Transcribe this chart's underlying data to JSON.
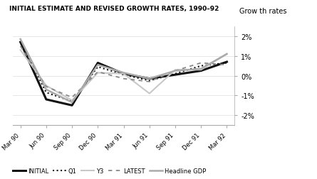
{
  "title": "INITIAL ESTIMATE AND REVISED GROWTH RATES, 1990–92",
  "ylabel": "Grow th rates",
  "xlabels": [
    "Mar 90",
    "Jun 90",
    "Sep 90",
    "Dec 90",
    "Mar 91",
    "Jun 91",
    "Sep 91",
    "Dec 91",
    "Mar 92"
  ],
  "ylim": [
    -2.5,
    2.5
  ],
  "yticks": [
    -2,
    -1,
    0,
    1,
    2
  ],
  "ytick_labels": [
    "-2%",
    "-1%",
    "0%",
    "1%",
    "2%"
  ],
  "series_order": [
    "INITIAL",
    "Q1",
    "Y3",
    "LATEST",
    "Headline GDP"
  ],
  "series": {
    "INITIAL": {
      "values": [
        1.7,
        -1.2,
        -1.5,
        0.65,
        0.1,
        -0.15,
        0.05,
        0.25,
        0.7
      ],
      "color": "#111111",
      "linestyle": "-",
      "linewidth": 2.2,
      "dashes": null
    },
    "Q1": {
      "values": [
        1.75,
        -0.85,
        -1.3,
        0.45,
        0.05,
        -0.25,
        0.1,
        0.5,
        0.65
      ],
      "color": "#111111",
      "linestyle": ":",
      "linewidth": 1.5,
      "dashes": null
    },
    "Y3": {
      "values": [
        1.3,
        -0.5,
        -1.25,
        0.15,
        0.1,
        -0.9,
        0.3,
        0.3,
        1.1
      ],
      "color": "#c8c8c8",
      "linestyle": "-",
      "linewidth": 1.5,
      "dashes": null
    },
    "LATEST": {
      "values": [
        1.5,
        -0.55,
        -1.1,
        0.2,
        -0.15,
        -0.3,
        0.25,
        0.65,
        0.55
      ],
      "color": "#888888",
      "linestyle": "--",
      "linewidth": 1.3,
      "dashes": [
        3,
        3
      ]
    },
    "Headline GDP": {
      "values": [
        1.85,
        -0.7,
        -1.35,
        0.55,
        0.15,
        -0.15,
        0.25,
        0.35,
        1.1
      ],
      "color": "#aaaaaa",
      "linestyle": "-",
      "linewidth": 1.8,
      "dashes": null
    }
  },
  "background_color": "#ffffff"
}
